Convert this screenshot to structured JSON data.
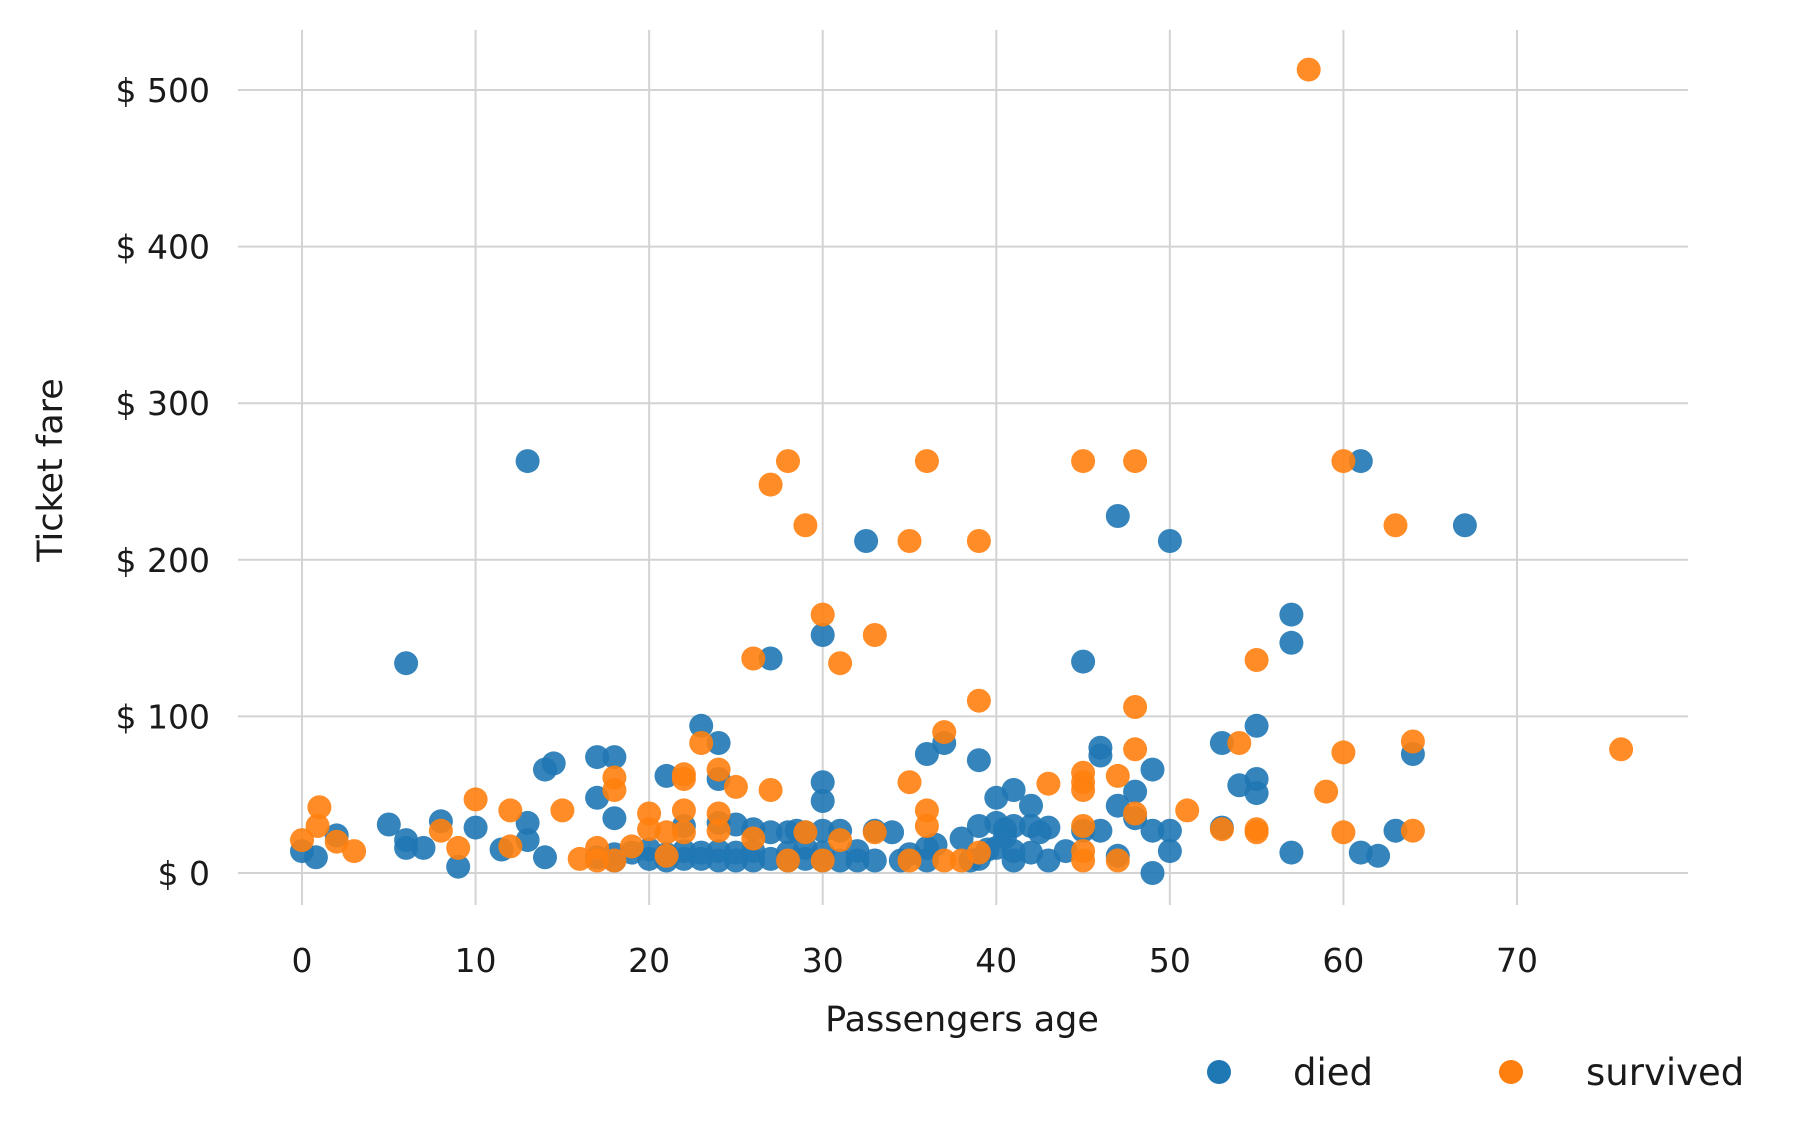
{
  "chart_data": {
    "type": "scatter",
    "title": "",
    "xlabel": "Passengers age",
    "ylabel": "Ticket fare",
    "xlim": [
      -3.7,
      80
    ],
    "ylim": [
      -22,
      540
    ],
    "x_ticks": [
      0,
      10,
      20,
      30,
      40,
      50,
      60,
      70
    ],
    "x_tick_labels": [
      "0",
      "10",
      "20",
      "30",
      "40",
      "50",
      "60",
      "70"
    ],
    "y_ticks": [
      0,
      100,
      200,
      300,
      400,
      500
    ],
    "y_tick_labels": [
      "$ 0",
      "$ 100",
      "$ 200",
      "$ 300",
      "$ 400",
      "$ 500"
    ],
    "grid": true,
    "legend_position": "bottom-right",
    "series": [
      {
        "name": "died",
        "color": "#1f77b4",
        "points": [
          [
            0,
            14
          ],
          [
            0.8,
            10
          ],
          [
            2,
            24
          ],
          [
            5,
            31
          ],
          [
            6,
            21
          ],
          [
            6,
            16
          ],
          [
            6,
            134
          ],
          [
            7,
            16
          ],
          [
            8,
            33
          ],
          [
            9,
            4
          ],
          [
            10,
            29
          ],
          [
            11.5,
            15
          ],
          [
            13,
            32
          ],
          [
            13,
            21
          ],
          [
            13,
            263
          ],
          [
            14,
            66
          ],
          [
            14,
            10
          ],
          [
            14.5,
            70
          ],
          [
            17,
            74
          ],
          [
            17,
            48
          ],
          [
            17,
            10
          ],
          [
            18,
            74
          ],
          [
            18,
            35
          ],
          [
            18,
            12
          ],
          [
            18,
            8
          ],
          [
            19,
            13
          ],
          [
            20,
            15
          ],
          [
            20,
            9
          ],
          [
            21,
            62
          ],
          [
            21,
            12
          ],
          [
            21,
            8
          ],
          [
            22,
            30
          ],
          [
            22,
            9
          ],
          [
            22,
            14
          ],
          [
            23,
            94
          ],
          [
            23,
            9
          ],
          [
            23,
            13
          ],
          [
            24,
            83
          ],
          [
            24,
            60
          ],
          [
            24,
            32
          ],
          [
            24,
            14
          ],
          [
            24,
            8
          ],
          [
            25,
            31
          ],
          [
            25,
            13
          ],
          [
            25,
            8
          ],
          [
            26,
            28
          ],
          [
            26,
            14
          ],
          [
            26,
            8
          ],
          [
            27,
            137
          ],
          [
            27,
            26
          ],
          [
            27,
            9
          ],
          [
            28,
            26
          ],
          [
            28,
            13
          ],
          [
            28,
            8
          ],
          [
            28.5,
            27
          ],
          [
            29,
            26
          ],
          [
            29,
            16
          ],
          [
            29,
            9
          ],
          [
            30,
            152
          ],
          [
            30,
            58
          ],
          [
            30,
            46
          ],
          [
            30,
            27
          ],
          [
            30,
            13
          ],
          [
            30,
            8
          ],
          [
            31,
            27
          ],
          [
            31,
            8
          ],
          [
            32,
            14
          ],
          [
            32,
            8
          ],
          [
            32.5,
            212
          ],
          [
            33,
            27
          ],
          [
            33,
            8
          ],
          [
            34,
            26
          ],
          [
            34.5,
            8
          ],
          [
            35,
            12
          ],
          [
            36,
            76
          ],
          [
            36,
            16
          ],
          [
            36,
            8
          ],
          [
            36.5,
            18
          ],
          [
            37,
            83
          ],
          [
            38,
            22
          ],
          [
            38.5,
            8
          ],
          [
            39,
            72
          ],
          [
            39,
            30
          ],
          [
            39,
            9
          ],
          [
            39.5,
            15
          ],
          [
            40,
            48
          ],
          [
            40,
            32
          ],
          [
            40,
            16
          ],
          [
            40.5,
            28
          ],
          [
            40.5,
            23
          ],
          [
            41,
            53
          ],
          [
            41,
            30
          ],
          [
            41,
            14
          ],
          [
            41,
            8
          ],
          [
            42,
            43
          ],
          [
            42,
            30
          ],
          [
            42,
            13
          ],
          [
            42.5,
            26
          ],
          [
            43,
            29
          ],
          [
            43,
            8
          ],
          [
            44,
            14
          ],
          [
            45,
            135
          ],
          [
            45,
            27
          ],
          [
            46,
            80
          ],
          [
            46,
            75
          ],
          [
            46,
            27
          ],
          [
            47,
            228
          ],
          [
            47,
            43
          ],
          [
            47,
            11
          ],
          [
            48,
            52
          ],
          [
            48,
            35
          ],
          [
            49,
            66
          ],
          [
            49,
            27
          ],
          [
            49,
            0
          ],
          [
            50,
            212
          ],
          [
            50,
            27
          ],
          [
            50,
            14
          ],
          [
            53,
            83
          ],
          [
            53,
            29
          ],
          [
            54,
            56
          ],
          [
            55,
            94
          ],
          [
            55,
            60
          ],
          [
            55,
            51
          ],
          [
            57,
            165
          ],
          [
            57,
            147
          ],
          [
            57,
            13
          ],
          [
            61,
            263
          ],
          [
            61,
            13
          ],
          [
            62,
            11
          ],
          [
            63,
            27
          ],
          [
            64,
            76
          ],
          [
            67,
            222
          ]
        ]
      },
      {
        "name": "survived",
        "color": "#ff7f0e",
        "points": [
          [
            0,
            21
          ],
          [
            0.9,
            30
          ],
          [
            1,
            42
          ],
          [
            2,
            20
          ],
          [
            3,
            14
          ],
          [
            8,
            27
          ],
          [
            9,
            16
          ],
          [
            10,
            47
          ],
          [
            12,
            40
          ],
          [
            12,
            17
          ],
          [
            15,
            40
          ],
          [
            16,
            9
          ],
          [
            17,
            16
          ],
          [
            17,
            8
          ],
          [
            18,
            61
          ],
          [
            18,
            53
          ],
          [
            18,
            8
          ],
          [
            19,
            17
          ],
          [
            20,
            38
          ],
          [
            20,
            28
          ],
          [
            21,
            26
          ],
          [
            21,
            11
          ],
          [
            22,
            63
          ],
          [
            22,
            60
          ],
          [
            22,
            40
          ],
          [
            22,
            26
          ],
          [
            23,
            83
          ],
          [
            24,
            66
          ],
          [
            24,
            38
          ],
          [
            24,
            27
          ],
          [
            25,
            55
          ],
          [
            26,
            137
          ],
          [
            26,
            22
          ],
          [
            27,
            248
          ],
          [
            27,
            53
          ],
          [
            28,
            263
          ],
          [
            28,
            8
          ],
          [
            29,
            222
          ],
          [
            29,
            26
          ],
          [
            30,
            165
          ],
          [
            30,
            8
          ],
          [
            31,
            134
          ],
          [
            31,
            21
          ],
          [
            33,
            152
          ],
          [
            33,
            26
          ],
          [
            35,
            212
          ],
          [
            35,
            58
          ],
          [
            35,
            8
          ],
          [
            36,
            263
          ],
          [
            36,
            40
          ],
          [
            36,
            30
          ],
          [
            37,
            90
          ],
          [
            37,
            8
          ],
          [
            38,
            8
          ],
          [
            39,
            212
          ],
          [
            39,
            110
          ],
          [
            39,
            13
          ],
          [
            43,
            57
          ],
          [
            45,
            263
          ],
          [
            45,
            64
          ],
          [
            45,
            58
          ],
          [
            45,
            53
          ],
          [
            45,
            30
          ],
          [
            45,
            14
          ],
          [
            45,
            8
          ],
          [
            47,
            62
          ],
          [
            47,
            8
          ],
          [
            48,
            263
          ],
          [
            48,
            106
          ],
          [
            48,
            79
          ],
          [
            48,
            38
          ],
          [
            51,
            40
          ],
          [
            53,
            28
          ],
          [
            54,
            83
          ],
          [
            55,
            136
          ],
          [
            55,
            28
          ],
          [
            55,
            26
          ],
          [
            59,
            52
          ],
          [
            60,
            263
          ],
          [
            60,
            77
          ],
          [
            60,
            26
          ],
          [
            63,
            222
          ],
          [
            64,
            84
          ],
          [
            64,
            27
          ],
          [
            76,
            79
          ],
          [
            58,
            513
          ]
        ]
      }
    ]
  }
}
